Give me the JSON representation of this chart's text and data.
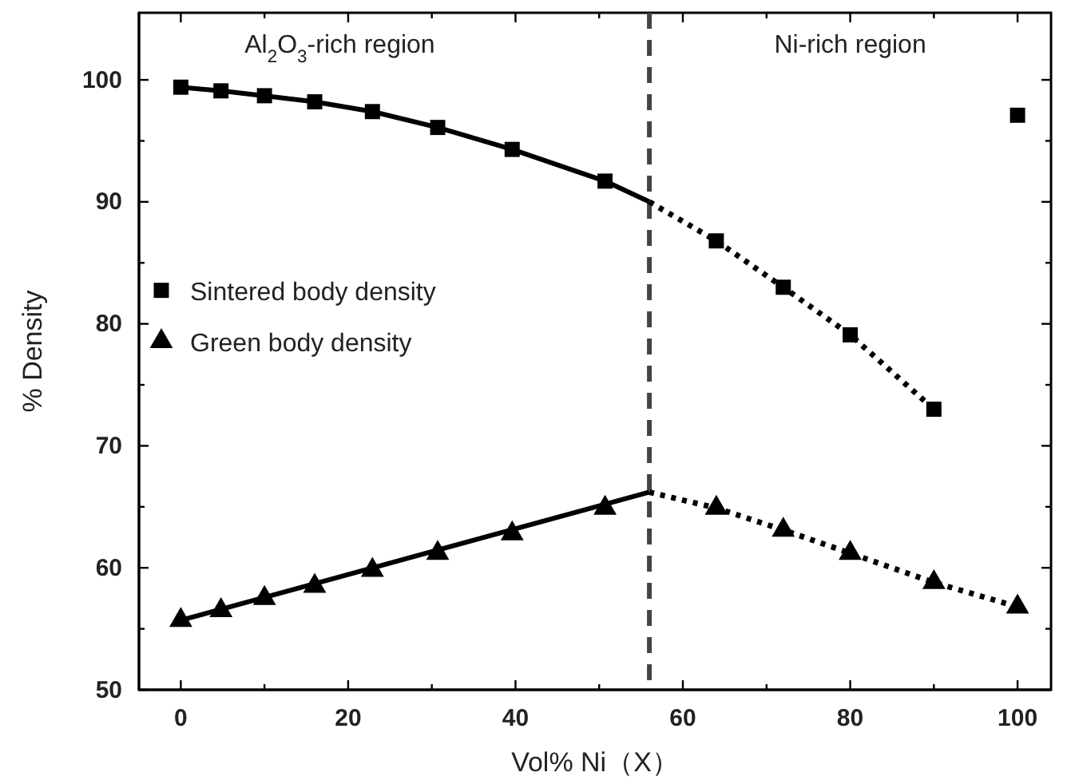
{
  "chart_data": {
    "type": "scatter",
    "xlabel": "Vol% Ni（X）",
    "ylabel": "% Density",
    "xlim": [
      -5,
      104
    ],
    "ylim": [
      50,
      105.5
    ],
    "xticks": [
      0,
      {
        "value": 10,
        "label": null
      },
      20,
      {
        "value": 30,
        "label": null
      },
      40,
      {
        "value": 50,
        "label": null
      },
      60,
      {
        "value": 70,
        "label": null
      },
      80,
      {
        "value": 90,
        "label": null
      },
      100
    ],
    "yticks": [
      50,
      {
        "value": 55,
        "label": null
      },
      60,
      {
        "value": 65,
        "label": null
      },
      70,
      {
        "value": 75,
        "label": null
      },
      80,
      {
        "value": 85,
        "label": null
      },
      90,
      {
        "value": 95,
        "label": null
      },
      100
    ],
    "series": [
      {
        "name": "Sintered body density",
        "marker": "square",
        "color": "#000000",
        "x": [
          0,
          4.8,
          10,
          16,
          22.9,
          30.7,
          39.6,
          50.7,
          64,
          72,
          80,
          90,
          100
        ],
        "values": [
          99.4,
          99.1,
          98.7,
          98.2,
          97.4,
          96.1,
          94.3,
          91.7,
          86.8,
          83.0,
          79.1,
          73.0,
          97.1
        ]
      },
      {
        "name": "Green body density",
        "marker": "triangle",
        "color": "#000000",
        "x": [
          0,
          4.8,
          10,
          16,
          22.9,
          30.7,
          39.6,
          50.7,
          64,
          72,
          80,
          90,
          100
        ],
        "values": [
          55.7,
          56.5,
          57.5,
          58.5,
          59.8,
          61.2,
          62.8,
          64.9,
          64.9,
          63.1,
          61.2,
          58.8,
          56.8
        ]
      },
      {
        "type": "line",
        "marker": "none",
        "line_style": "solid",
        "color": "#000000",
        "x": [
          0,
          4.8,
          10,
          16,
          22.9,
          30.7,
          39.6,
          50.7,
          56
        ],
        "values": [
          99.4,
          99.1,
          98.7,
          98.2,
          97.4,
          96.1,
          94.3,
          91.7,
          90.0
        ]
      },
      {
        "type": "line",
        "marker": "none",
        "line_style": "dotted",
        "color": "#000000",
        "x": [
          56,
          64,
          72,
          80,
          90
        ],
        "values": [
          90.0,
          86.8,
          83.0,
          79.1,
          73.0
        ]
      },
      {
        "type": "line",
        "marker": "none",
        "line_style": "solid",
        "color": "#000000",
        "x": [
          0,
          56
        ],
        "values": [
          55.7,
          66.2
        ]
      },
      {
        "type": "line",
        "marker": "none",
        "line_style": "dotted",
        "color": "#000000",
        "x": [
          56,
          64,
          72,
          80,
          90,
          100
        ],
        "values": [
          66.2,
          64.9,
          63.1,
          61.2,
          58.8,
          56.8
        ]
      }
    ],
    "ref_lines": [
      {
        "axis": "x",
        "value": 56,
        "color": "#444444",
        "line_style": "dashed"
      }
    ],
    "annotations": [
      "Al$_{2}$O$_{3}$-rich region",
      "Ni-rich region"
    ],
    "legend": "left"
  }
}
